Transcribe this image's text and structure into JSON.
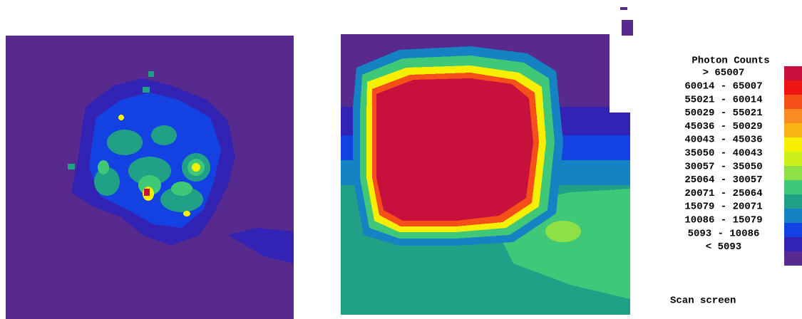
{
  "legend": {
    "title": "Photon Counts",
    "entries": [
      {
        "label": "> 65007",
        "color": "#c8103c"
      },
      {
        "label": "60014 - 65007",
        "color": "#ee1414"
      },
      {
        "label": "55021 - 60014",
        "color": "#f5501a"
      },
      {
        "label": "50029 - 55021",
        "color": "#f78c22"
      },
      {
        "label": "45036 - 50029",
        "color": "#fab414"
      },
      {
        "label": "40043 - 45036",
        "color": "#f6f000"
      },
      {
        "label": "35050 - 40043",
        "color": "#cdef1e"
      },
      {
        "label": "30057 - 35050",
        "color": "#8ee046"
      },
      {
        "label": "25064 - 30057",
        "color": "#3fc878"
      },
      {
        "label": "20071 - 25064",
        "color": "#1fa087"
      },
      {
        "label": "15079 - 20071",
        "color": "#1482c3"
      },
      {
        "label": "10086 - 15079",
        "color": "#1441e1"
      },
      {
        "label": "5093 - 10086",
        "color": "#3223b4"
      },
      {
        "label": "< 5093",
        "color": "#582a8e"
      }
    ]
  },
  "status": "Scan screen"
}
